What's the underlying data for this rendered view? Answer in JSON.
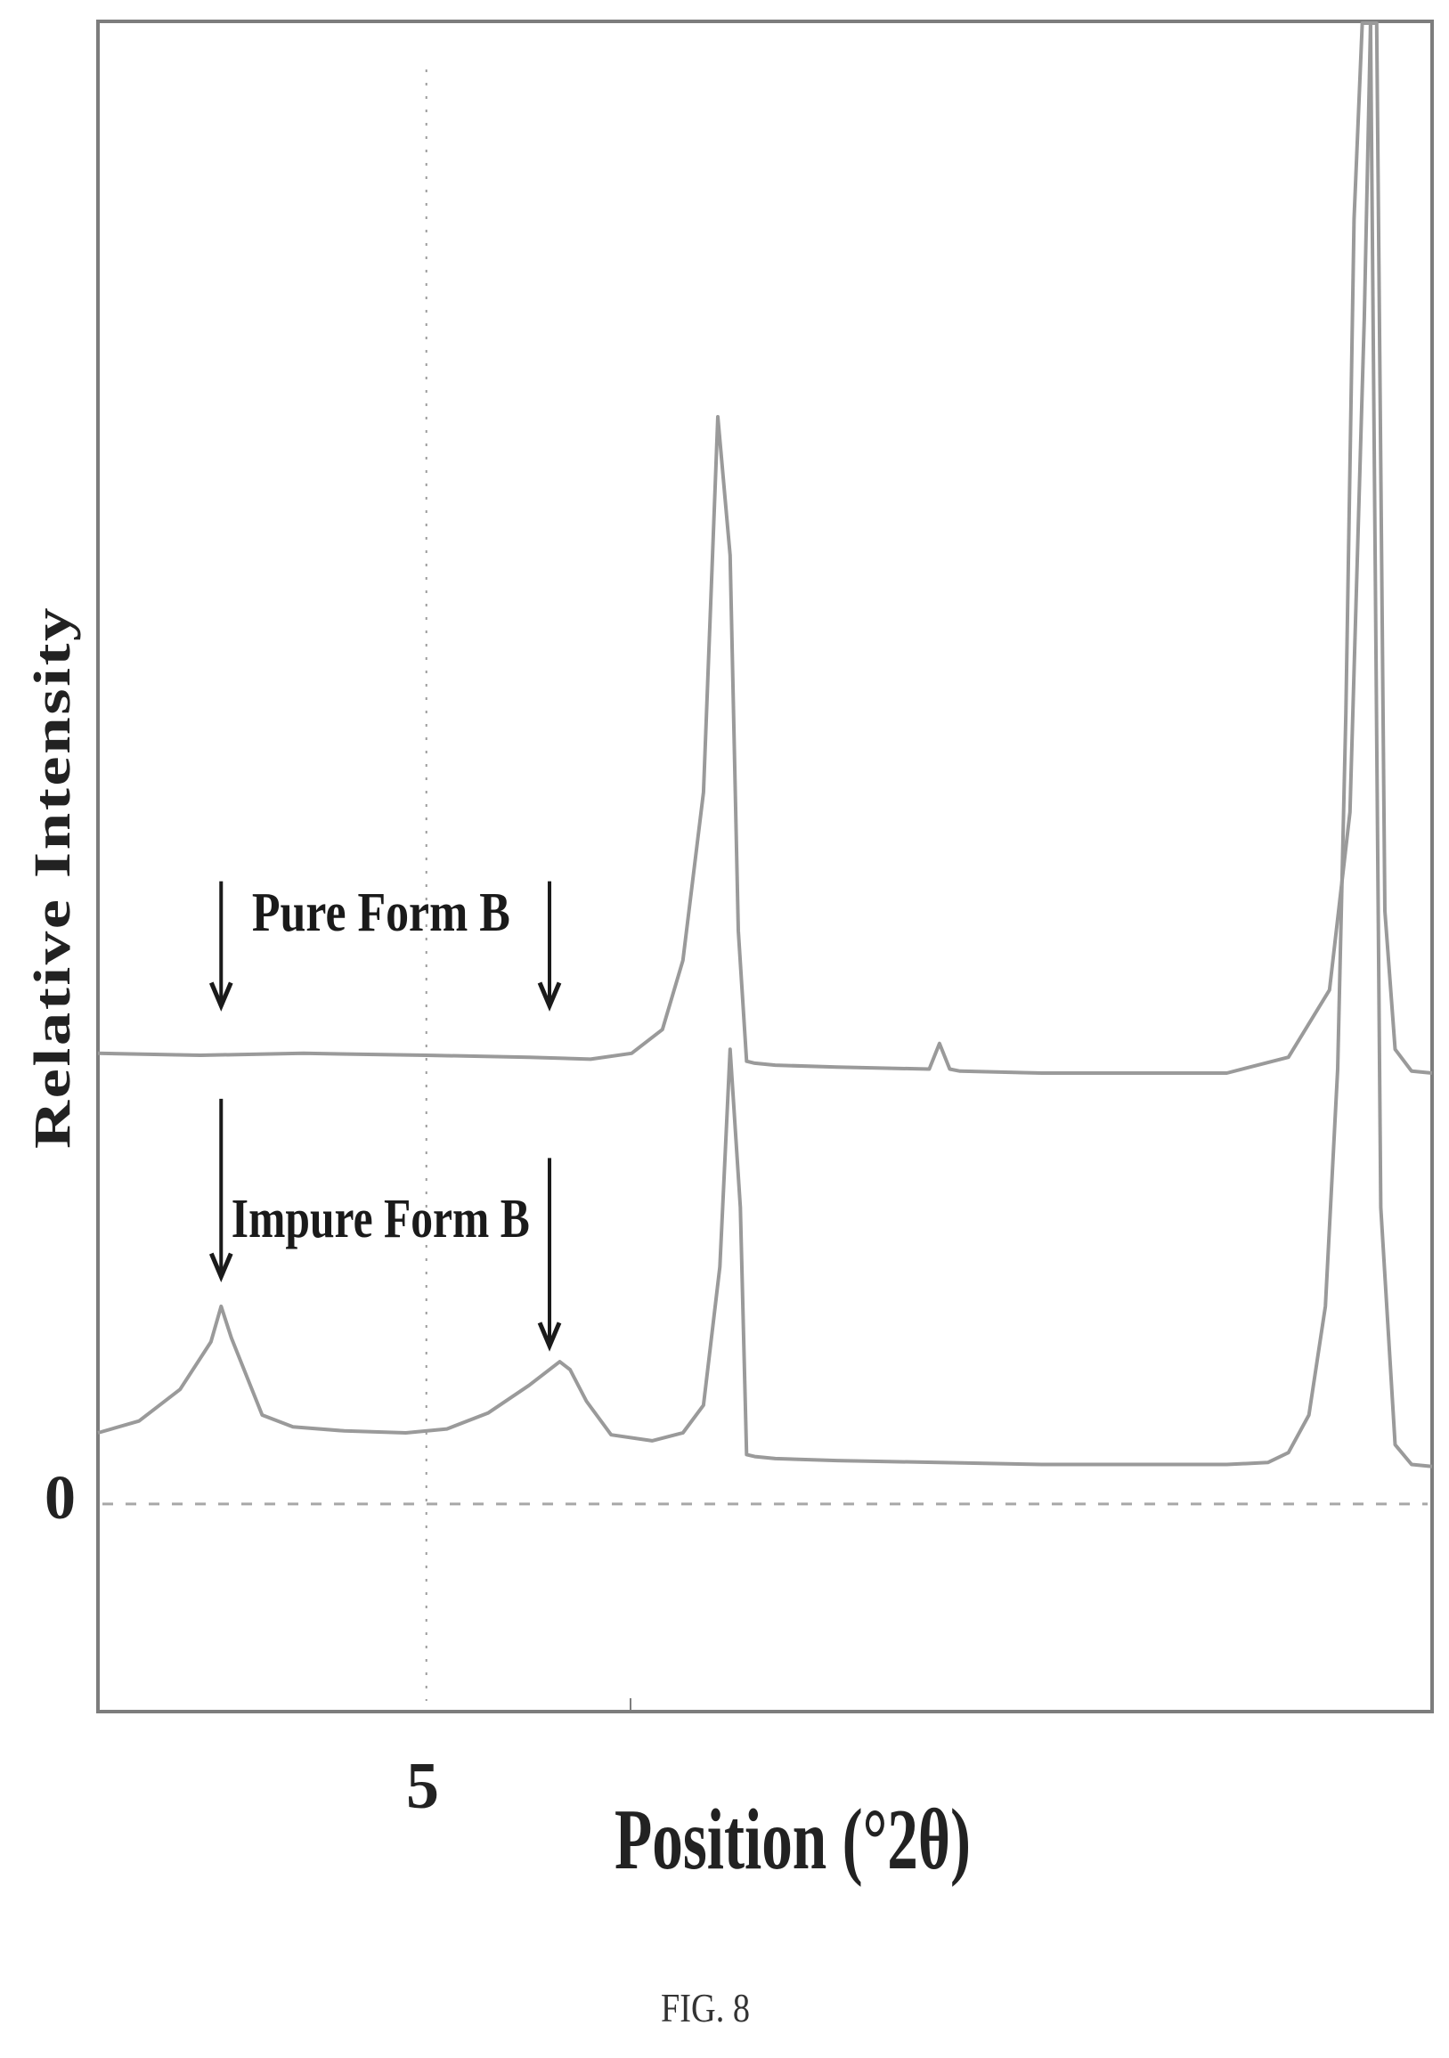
{
  "figure": {
    "caption": "FIG. 8"
  },
  "chart_data": {
    "type": "line",
    "title": "",
    "xlabel": "Position (°2θ)",
    "ylabel": "Relative Intensity",
    "x_tick_labels": [
      "5"
    ],
    "y_tick_labels": [
      "0"
    ],
    "xlim": [
      3.4,
      9.9
    ],
    "ylim": [
      -1.05,
      7.5
    ],
    "grid": {
      "x_dotted_at": 5,
      "y_dashed_at": 0
    },
    "legend": "none",
    "series": [
      {
        "name": "Pure Form B",
        "color": "#9a9a9a",
        "x": [
          3.4,
          3.9,
          4.4,
          5.0,
          5.5,
          5.8,
          6.0,
          6.15,
          6.25,
          6.35,
          6.42,
          6.48,
          6.52,
          6.56,
          6.6,
          6.7,
          7.0,
          7.45,
          7.5,
          7.55,
          7.6,
          8.0,
          8.5,
          8.9,
          9.2,
          9.4,
          9.5,
          9.57,
          9.6,
          9.63,
          9.67,
          9.72,
          9.8,
          9.9
        ],
        "y": [
          2.28,
          2.27,
          2.28,
          2.27,
          2.26,
          2.25,
          2.28,
          2.4,
          2.75,
          3.6,
          5.5,
          4.8,
          2.9,
          2.24,
          2.23,
          2.22,
          2.21,
          2.2,
          2.33,
          2.2,
          2.19,
          2.18,
          2.18,
          2.18,
          2.26,
          2.6,
          3.5,
          6.0,
          7.5,
          7.5,
          3.0,
          2.3,
          2.19,
          2.18
        ]
      },
      {
        "name": "Impure Form B",
        "color": "#9a9a9a",
        "x": [
          3.4,
          3.6,
          3.8,
          3.95,
          4.0,
          4.05,
          4.2,
          4.35,
          4.6,
          4.9,
          5.1,
          5.3,
          5.5,
          5.65,
          5.7,
          5.78,
          5.9,
          6.1,
          6.25,
          6.35,
          6.43,
          6.48,
          6.53,
          6.56,
          6.6,
          6.7,
          7.0,
          7.5,
          8.0,
          8.5,
          8.9,
          9.1,
          9.2,
          9.3,
          9.38,
          9.44,
          9.48,
          9.52,
          9.56,
          9.6,
          9.65,
          9.72,
          9.8,
          9.9
        ],
        "y": [
          0.36,
          0.42,
          0.58,
          0.82,
          1.0,
          0.84,
          0.45,
          0.39,
          0.37,
          0.36,
          0.38,
          0.46,
          0.6,
          0.72,
          0.68,
          0.52,
          0.35,
          0.32,
          0.36,
          0.5,
          1.2,
          2.3,
          1.5,
          0.25,
          0.24,
          0.23,
          0.22,
          0.21,
          0.2,
          0.2,
          0.2,
          0.21,
          0.26,
          0.45,
          1.0,
          2.2,
          4.0,
          6.5,
          7.5,
          7.5,
          1.5,
          0.3,
          0.2,
          0.19
        ]
      }
    ],
    "annotations": [
      {
        "text": "Pure Form B",
        "x": 4.15,
        "y": 2.9
      },
      {
        "text": "Impure Form B",
        "x": 4.05,
        "y": 1.35
      }
    ],
    "arrows": [
      {
        "series": "Pure Form B",
        "x": 4.0,
        "y_from": 3.15,
        "y_to": 2.52
      },
      {
        "series": "Pure Form B",
        "x": 5.6,
        "y_from": 3.15,
        "y_to": 2.52
      },
      {
        "series": "Impure Form B",
        "x": 4.0,
        "y_from": 2.05,
        "y_to": 1.15
      },
      {
        "series": "Impure Form B",
        "x": 5.6,
        "y_from": 1.75,
        "y_to": 0.8
      }
    ]
  }
}
